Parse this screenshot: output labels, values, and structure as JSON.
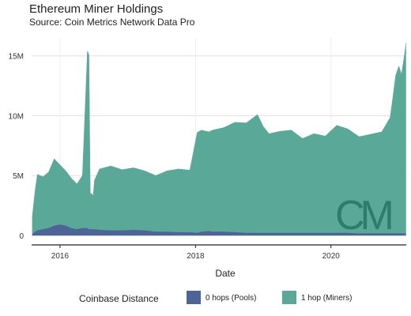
{
  "title": "Ethereum Miner Holdings",
  "subtitle": "Source: Coin Metrics Network Data Pro",
  "watermark": "CM",
  "colors": {
    "pools": "#4e6496",
    "miners": "#5aa898",
    "watermark": "#2d7d6e",
    "grid": "#e2e2e2",
    "axis": "#222222"
  },
  "chart_data": {
    "type": "area",
    "stacked": true,
    "xlabel": "Date",
    "ylabel": "",
    "x_ticks": [
      "2016",
      "2018",
      "2020"
    ],
    "y_ticks": [
      "0",
      "5M",
      "10M",
      "15M"
    ],
    "ylim": [
      0,
      16500000
    ],
    "xlim": [
      "2015-08-01",
      "2021-02-10"
    ],
    "grid": true,
    "legend_position": "bottom",
    "legend_title": "Coinbase Distance",
    "x": [
      "2015-08-05",
      "2015-08-20",
      "2015-09-01",
      "2015-10-01",
      "2015-11-01",
      "2015-12-01",
      "2016-01-01",
      "2016-02-01",
      "2016-03-01",
      "2016-04-01",
      "2016-05-01",
      "2016-05-28",
      "2016-06-05",
      "2016-06-12",
      "2016-06-20",
      "2016-06-28",
      "2016-07-05",
      "2016-08-01",
      "2016-10-01",
      "2016-12-01",
      "2017-02-01",
      "2017-04-01",
      "2017-06-01",
      "2017-08-01",
      "2017-10-01",
      "2017-12-01",
      "2018-01-10",
      "2018-02-01",
      "2018-03-15",
      "2018-04-01",
      "2018-06-01",
      "2018-08-01",
      "2018-10-01",
      "2018-12-01",
      "2019-01-01",
      "2019-02-01",
      "2019-04-01",
      "2019-06-01",
      "2019-08-01",
      "2019-10-01",
      "2019-12-01",
      "2020-02-01",
      "2020-04-01",
      "2020-06-01",
      "2020-08-01",
      "2020-10-01",
      "2020-11-15",
      "2020-12-01",
      "2020-12-15",
      "2021-01-01",
      "2021-01-15",
      "2021-02-01",
      "2021-02-08"
    ],
    "series": [
      {
        "name": "0 hops (Pools)",
        "values": [
          0.1,
          0.3,
          0.4,
          0.5,
          0.6,
          0.8,
          0.9,
          0.8,
          0.6,
          0.5,
          0.6,
          0.6,
          0.5,
          0.5,
          0.5,
          0.5,
          0.5,
          0.45,
          0.4,
          0.4,
          0.45,
          0.4,
          0.3,
          0.3,
          0.25,
          0.25,
          0.2,
          0.3,
          0.35,
          0.3,
          0.3,
          0.25,
          0.2,
          0.2,
          0.2,
          0.2,
          0.2,
          0.2,
          0.2,
          0.2,
          0.2,
          0.2,
          0.2,
          0.15,
          0.15,
          0.15,
          0.15,
          0.15,
          0.15,
          0.15,
          0.15,
          0.15,
          0.15
        ]
      },
      {
        "name": "1 hop (Miners)",
        "values": [
          1.5,
          3.5,
          4.7,
          4.4,
          4.7,
          5.6,
          5.0,
          4.6,
          4.2,
          3.8,
          4.4,
          14.8,
          14.6,
          3.0,
          3.0,
          2.8,
          4.1,
          5.1,
          5.4,
          5.1,
          5.2,
          5.0,
          4.7,
          5.1,
          5.3,
          5.2,
          8.4,
          8.5,
          8.3,
          8.5,
          8.7,
          9.2,
          9.2,
          9.9,
          8.9,
          8.3,
          8.5,
          8.6,
          7.9,
          8.3,
          8.1,
          9.0,
          8.7,
          8.1,
          8.3,
          8.5,
          9.7,
          11.5,
          13.2,
          14.0,
          13.3,
          15.0,
          15.9
        ]
      }
    ],
    "value_scale": "millions"
  }
}
